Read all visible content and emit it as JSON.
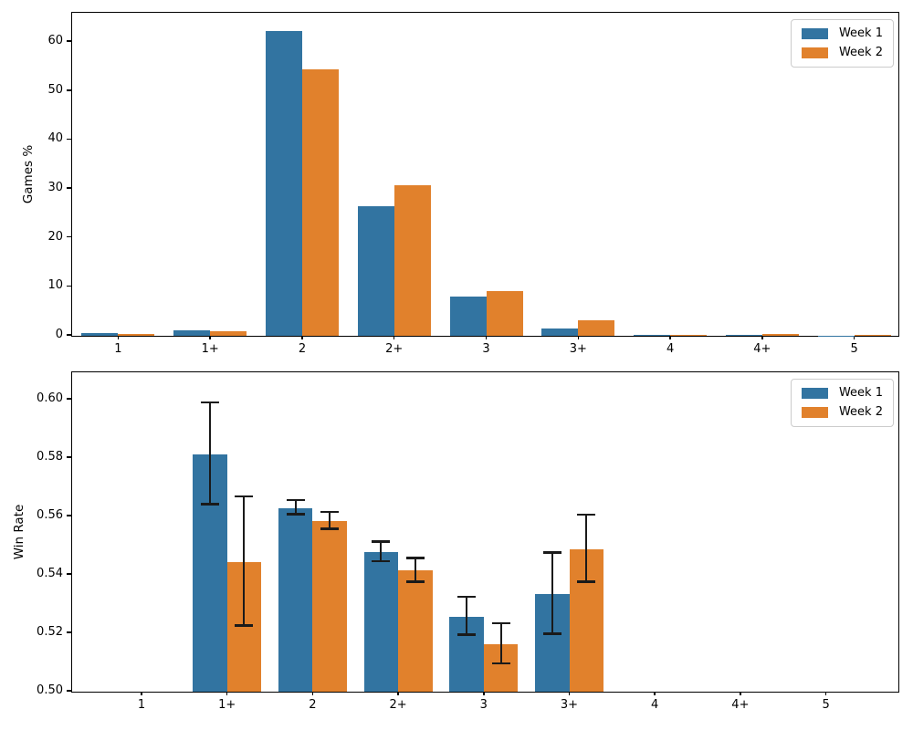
{
  "figure": {
    "background": "#ffffff",
    "series_names": [
      "Week 1",
      "Week 2"
    ],
    "series_colors": [
      "#3274a1",
      "#e1812c"
    ],
    "errorbar_color": "#1a1a1a"
  },
  "chart_data": [
    {
      "type": "bar",
      "title": "",
      "xlabel": "",
      "ylabel": "Games %",
      "categories": [
        "1",
        "1+",
        "2",
        "2+",
        "3",
        "3+",
        "4",
        "4+",
        "5"
      ],
      "ylim": [
        0,
        65.8
      ],
      "yticks": [
        0,
        10,
        20,
        30,
        40,
        50,
        60
      ],
      "ytick_labels": [
        "0",
        "10",
        "20",
        "30",
        "40",
        "50",
        "60"
      ],
      "grid": false,
      "legend_position": "upper right",
      "legend_entries": [
        "Week 1",
        "Week 2"
      ],
      "series": [
        {
          "name": "Week 1",
          "color": "#3274a1",
          "values": [
            0.5,
            1.1,
            62.2,
            26.5,
            8.0,
            1.5,
            0.25,
            0.25,
            0.05
          ]
        },
        {
          "name": "Week 2",
          "color": "#e1812c",
          "values": [
            0.4,
            0.9,
            54.5,
            30.8,
            9.2,
            3.2,
            0.15,
            0.4,
            0.15
          ]
        }
      ]
    },
    {
      "type": "bar",
      "title": "",
      "xlabel": "",
      "ylabel": "Win Rate",
      "categories": [
        "1",
        "1+",
        "2",
        "2+",
        "3",
        "3+",
        "4",
        "4+",
        "5"
      ],
      "ylim": [
        0.5,
        0.609
      ],
      "yticks": [
        0.5,
        0.52,
        0.54,
        0.56,
        0.58,
        0.6
      ],
      "ytick_labels": [
        "0.50",
        "0.52",
        "0.54",
        "0.56",
        "0.58",
        "0.60"
      ],
      "grid": false,
      "legend_position": "upper right",
      "legend_entries": [
        "Week 1",
        "Week 2"
      ],
      "series": [
        {
          "name": "Week 1",
          "color": "#3274a1",
          "values": [
            null,
            0.5813,
            0.5628,
            0.5477,
            0.5257,
            0.5334,
            null,
            null,
            null
          ],
          "errors": [
            null,
            0.0174,
            0.0024,
            0.0034,
            0.0065,
            0.0139,
            null,
            null,
            null
          ]
        },
        {
          "name": "Week 2",
          "color": "#e1812c",
          "values": [
            null,
            0.5444,
            0.5583,
            0.5414,
            0.5162,
            0.5488,
            null,
            null,
            null
          ],
          "errors": [
            null,
            0.0221,
            0.0029,
            0.004,
            0.0069,
            0.0114,
            null,
            null,
            null
          ]
        }
      ]
    }
  ]
}
